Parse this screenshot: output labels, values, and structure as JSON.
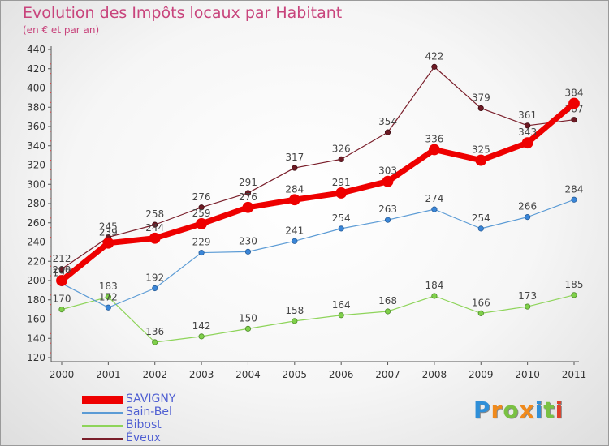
{
  "title": "Evolution des Impôts locaux par Habitant",
  "subtitle": "(en € et par an)",
  "logo_text": "Proxiti",
  "chart_data": {
    "type": "line",
    "title": "Evolution des Impôts locaux par Habitant",
    "subtitle": "(en € et par an)",
    "x": [
      "2000",
      "2001",
      "2002",
      "2003",
      "2004",
      "2005",
      "2006",
      "2007",
      "2008",
      "2009",
      "2010",
      "2011"
    ],
    "ylim": [
      120,
      440
    ],
    "ytick_step": 20,
    "grid": false,
    "legend_position": "bottom-left",
    "series": [
      {
        "name": "SAVIGNY",
        "color": "#ee0000",
        "values": [
          200,
          239,
          244,
          259,
          276,
          284,
          291,
          303,
          336,
          325,
          343,
          384
        ]
      },
      {
        "name": "Sain-Bel",
        "color": "#5b9bd5",
        "values": [
          197,
          172,
          192,
          229,
          230,
          241,
          254,
          263,
          274,
          254,
          266,
          284
        ]
      },
      {
        "name": "Bibost",
        "color": "#8ed45a",
        "values": [
          170,
          183,
          136,
          142,
          150,
          158,
          164,
          168,
          184,
          166,
          173,
          185
        ]
      },
      {
        "name": "Éveux",
        "color": "#7a1f2b",
        "values": [
          212,
          245,
          258,
          276,
          291,
          317,
          326,
          354,
          422,
          379,
          361,
          367
        ]
      }
    ]
  }
}
